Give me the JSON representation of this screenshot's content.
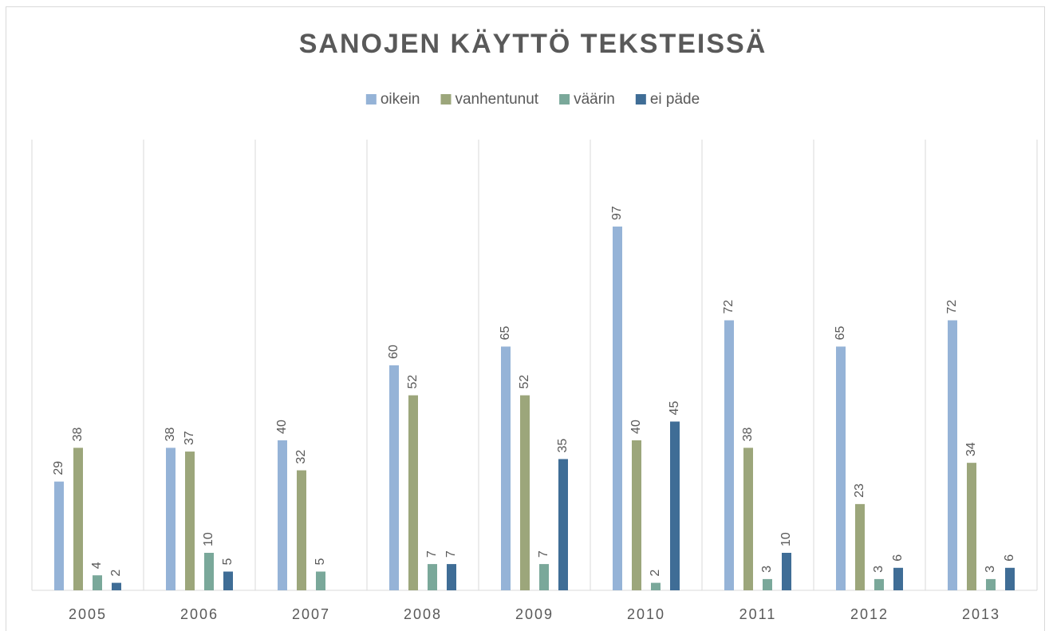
{
  "chart_data": {
    "type": "bar",
    "title": "SANOJEN KÄYTTÖ TEKSTEISSÄ",
    "categories": [
      "2005",
      "2006",
      "2007",
      "2008",
      "2009",
      "2010",
      "2011",
      "2012",
      "2013"
    ],
    "series": [
      {
        "name": "oikein",
        "color": "#95b3d7",
        "values": [
          29,
          38,
          40,
          60,
          65,
          97,
          72,
          65,
          72
        ]
      },
      {
        "name": "vanhentunut",
        "color": "#9ca67b",
        "values": [
          38,
          37,
          32,
          52,
          52,
          40,
          38,
          23,
          34
        ]
      },
      {
        "name": "väärin",
        "color": "#7aa89a",
        "values": [
          4,
          10,
          5,
          7,
          7,
          2,
          3,
          3,
          3
        ]
      },
      {
        "name": "ei päde",
        "color": "#3f6d96",
        "values": [
          2,
          5,
          null,
          7,
          35,
          45,
          10,
          6,
          6
        ]
      }
    ],
    "legend": "top"
  }
}
